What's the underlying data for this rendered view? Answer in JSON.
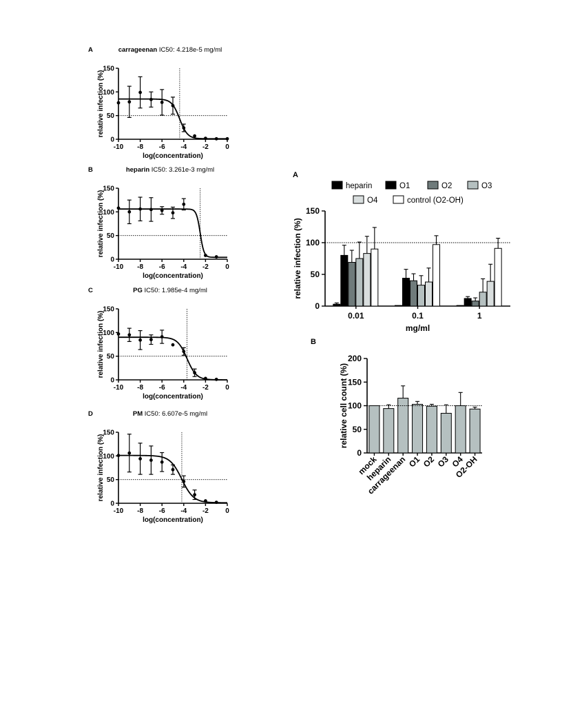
{
  "chart_data": [
    {
      "type": "scatter",
      "panel_letter": "A",
      "title_compound": "carrageenan",
      "title_ic50": "IC50: 4.218e-5 mg/ml",
      "xlabel": "log(concentration)",
      "ylabel": "relative infection (%)",
      "xlim": [
        -10,
        0
      ],
      "ylim": [
        0,
        150
      ],
      "xticks": [
        "-10",
        "-8",
        "-6",
        "-4",
        "-2",
        "0"
      ],
      "yticks": [
        "0",
        "50",
        "100",
        "150"
      ],
      "fit": {
        "top": 85,
        "bottom": 1,
        "log_ic50": -4.375,
        "hill": -1.2
      },
      "points": [
        {
          "x": -10,
          "y": 77
        },
        {
          "x": -9,
          "y": 79,
          "err": 33
        },
        {
          "x": -8,
          "y": 99,
          "err": 33
        },
        {
          "x": -7,
          "y": 84,
          "err": 16
        },
        {
          "x": -6,
          "y": 78,
          "err": 27
        },
        {
          "x": -5,
          "y": 71,
          "err": 18
        },
        {
          "x": -4,
          "y": 24,
          "err": 8
        },
        {
          "x": -3,
          "y": 7
        },
        {
          "x": -2,
          "y": 2
        },
        {
          "x": -1,
          "y": 1
        },
        {
          "x": 0,
          "y": 1
        }
      ],
      "reference_lines": {
        "y": 50,
        "x": -4.375
      }
    },
    {
      "type": "scatter",
      "panel_letter": "B",
      "title_compound": "heparin",
      "title_ic50": "IC50: 3.261e-3 mg/ml",
      "xlabel": "log(concentration)",
      "ylabel": "relative infection (%)",
      "xlim": [
        -10,
        0
      ],
      "ylim": [
        0,
        150
      ],
      "xticks": [
        "-10",
        "-8",
        "-6",
        "-4",
        "-2",
        "0"
      ],
      "yticks": [
        "0",
        "50",
        "100",
        "150"
      ],
      "fit": {
        "top": 106,
        "bottom": 4,
        "log_ic50": -2.487,
        "hill": -2.5
      },
      "points": [
        {
          "x": -10,
          "y": 108
        },
        {
          "x": -9,
          "y": 100,
          "err": 25
        },
        {
          "x": -8,
          "y": 106,
          "err": 25
        },
        {
          "x": -7,
          "y": 105,
          "err": 25
        },
        {
          "x": -6,
          "y": 103,
          "err": 8
        },
        {
          "x": -5,
          "y": 98,
          "err": 12
        },
        {
          "x": -4,
          "y": 116,
          "err": 12
        },
        {
          "x": -2,
          "y": 8
        },
        {
          "x": -1,
          "y": 5
        }
      ],
      "reference_lines": {
        "y": 50,
        "x": -2.487
      }
    },
    {
      "type": "scatter",
      "panel_letter": "C",
      "title_compound": "PG",
      "title_ic50": "IC50: 1.985e-4 mg/ml",
      "xlabel": "log(concentration)",
      "ylabel": "relative infection (%)",
      "xlim": [
        -10,
        0
      ],
      "ylim": [
        0,
        150
      ],
      "xticks": [
        "-10",
        "-8",
        "-6",
        "-4",
        "-2",
        "0"
      ],
      "yticks": [
        "0",
        "50",
        "100",
        "150"
      ],
      "fit": {
        "top": 90,
        "bottom": 0,
        "log_ic50": -3.7,
        "hill": -1.0
      },
      "points": [
        {
          "x": -10,
          "y": 97
        },
        {
          "x": -9,
          "y": 95,
          "err": 14
        },
        {
          "x": -8,
          "y": 84,
          "err": 20
        },
        {
          "x": -7,
          "y": 85,
          "err": 10
        },
        {
          "x": -6,
          "y": 91,
          "err": 14
        },
        {
          "x": -5,
          "y": 74
        },
        {
          "x": -4,
          "y": 60,
          "err": 8
        },
        {
          "x": -3,
          "y": 15,
          "err": 8
        },
        {
          "x": -2,
          "y": 3
        },
        {
          "x": -1,
          "y": 1
        }
      ],
      "reference_lines": {
        "y": 50,
        "x": -3.7
      }
    },
    {
      "type": "scatter",
      "panel_letter": "D",
      "title_compound": "PM",
      "title_ic50": "IC50: 6.607e-5 mg/ml",
      "xlabel": "log(concentration)",
      "ylabel": "relative infection (%)",
      "xlim": [
        -10,
        0
      ],
      "ylim": [
        0,
        150
      ],
      "xticks": [
        "-10",
        "-8",
        "-6",
        "-4",
        "-2",
        "0"
      ],
      "yticks": [
        "0",
        "50",
        "100",
        "150"
      ],
      "fit": {
        "top": 101,
        "bottom": 1,
        "log_ic50": -4.18,
        "hill": -0.8
      },
      "points": [
        {
          "x": -10,
          "y": 101
        },
        {
          "x": -9,
          "y": 106,
          "err": 40
        },
        {
          "x": -8,
          "y": 94,
          "err": 33
        },
        {
          "x": -7,
          "y": 91,
          "err": 30
        },
        {
          "x": -6,
          "y": 87,
          "err": 20
        },
        {
          "x": -5,
          "y": 71,
          "err": 10
        },
        {
          "x": -4,
          "y": 46,
          "err": 12
        },
        {
          "x": -3,
          "y": 18,
          "err": 10
        },
        {
          "x": -2,
          "y": 5
        },
        {
          "x": -1,
          "y": 2
        }
      ],
      "reference_lines": {
        "y": 50,
        "x": -4.18
      }
    },
    {
      "type": "bar",
      "panel_letter": "A",
      "categories": [
        "0.01",
        "0.1",
        "1"
      ],
      "xlabel": "mg/ml",
      "ylabel": "relative infection (%)",
      "ylim": [
        0,
        150
      ],
      "yticks": [
        "0",
        "50",
        "100",
        "150"
      ],
      "reference_line_y": 100,
      "legend": "top",
      "series": [
        {
          "name": "heparin",
          "color": "#000000",
          "values": [
            3,
            1,
            1
          ],
          "errors": [
            2,
            0,
            0
          ]
        },
        {
          "name": "O1",
          "color": "#000000",
          "values": [
            80,
            44,
            12
          ],
          "errors": [
            16,
            14,
            3
          ]
        },
        {
          "name": "O2",
          "color": "#6f7b7b",
          "values": [
            69,
            40,
            8
          ],
          "errors": [
            19,
            11,
            5
          ]
        },
        {
          "name": "O3",
          "color": "#b5c0c0",
          "values": [
            75,
            33,
            22
          ],
          "errors": [
            26,
            15,
            21
          ]
        },
        {
          "name": "O4",
          "color": "#d9dede",
          "values": [
            83,
            38,
            39
          ],
          "errors": [
            27,
            22,
            27
          ]
        },
        {
          "name": "control (O2-OH)",
          "color": "#ffffff",
          "values": [
            90,
            97,
            91
          ],
          "errors": [
            34,
            14,
            16
          ]
        }
      ]
    },
    {
      "type": "bar",
      "panel_letter": "B",
      "categories": [
        "mock",
        "heparin",
        "carrageenan",
        "O1",
        "O2",
        "O3",
        "O4",
        "O2-OH"
      ],
      "ylabel": "relative cell count (%)",
      "ylim": [
        0,
        200
      ],
      "yticks": [
        "0",
        "50",
        "100",
        "150",
        "200"
      ],
      "reference_line_y": 100,
      "bar_color": "#b5c0c0",
      "values": [
        100,
        94,
        116,
        103,
        99,
        84,
        100,
        93
      ],
      "errors": [
        0,
        8,
        26,
        6,
        4,
        18,
        28,
        4
      ]
    }
  ]
}
